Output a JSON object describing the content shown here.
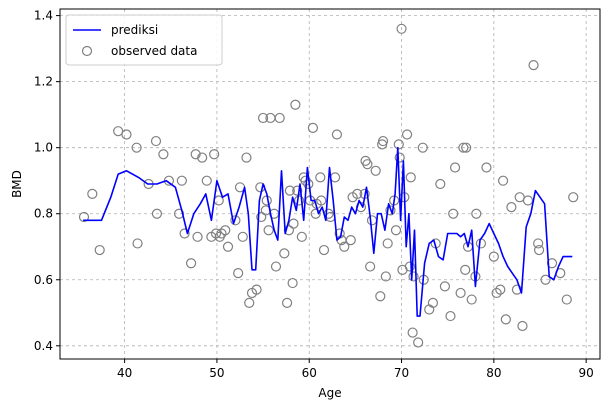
{
  "chart_data": {
    "type": "scatter",
    "title": "",
    "xlabel": "Age",
    "ylabel": "BMD",
    "xlim": [
      33,
      91.5
    ],
    "ylim": [
      0.36,
      1.42
    ],
    "xticks": [
      40,
      50,
      60,
      70,
      80,
      90
    ],
    "yticks": [
      0.4,
      0.6,
      0.8,
      1.0,
      1.2,
      1.4
    ],
    "xtick_labels": [
      "40",
      "50",
      "60",
      "70",
      "80",
      "90"
    ],
    "ytick_labels": [
      "0.4",
      "0.6",
      "0.8",
      "1.0",
      "1.2",
      "1.4"
    ],
    "grid": true,
    "legend_position": "top-left",
    "colors": {
      "line": "#0000ff",
      "points": "#808080",
      "grid": "#b0b0b0"
    },
    "series": [
      {
        "name": "prediksi",
        "kind": "line",
        "x": [
          35.5,
          36.5,
          37.5,
          38.5,
          39.3,
          40.2,
          41.5,
          42.5,
          43.5,
          44.5,
          45.5,
          46.2,
          46.8,
          47.5,
          48.2,
          48.8,
          49.4,
          50.0,
          50.6,
          51.2,
          51.8,
          52.4,
          53.0,
          53.4,
          53.8,
          54.2,
          54.6,
          55.0,
          55.4,
          55.8,
          56.2,
          56.6,
          57.0,
          57.4,
          57.8,
          58.2,
          58.6,
          59.0,
          59.4,
          59.8,
          60.2,
          60.6,
          61.0,
          61.4,
          61.8,
          62.2,
          62.6,
          63.0,
          63.4,
          63.8,
          64.2,
          64.6,
          65.0,
          65.4,
          65.8,
          66.2,
          66.6,
          67.0,
          67.4,
          67.8,
          68.2,
          68.6,
          69.0,
          69.3,
          69.6,
          69.9,
          70.2,
          70.5,
          70.8,
          71.1,
          71.4,
          71.7,
          72.0,
          72.5,
          73.0,
          73.5,
          74.0,
          74.5,
          75.0,
          75.5,
          76.0,
          76.4,
          76.8,
          77.2,
          77.6,
          78.0,
          78.5,
          79.0,
          79.5,
          80.0,
          80.5,
          81.0,
          81.5,
          82.0,
          82.5,
          83.0,
          83.5,
          84.0,
          84.5,
          85.0,
          85.5,
          86.0,
          86.5,
          87.0,
          87.5,
          88.0,
          88.5
        ],
        "y": [
          0.78,
          0.78,
          0.78,
          0.85,
          0.92,
          0.93,
          0.91,
          0.89,
          0.89,
          0.9,
          0.88,
          0.81,
          0.74,
          0.8,
          0.83,
          0.86,
          0.78,
          0.9,
          0.85,
          0.86,
          0.77,
          0.82,
          0.88,
          0.8,
          0.63,
          0.63,
          0.84,
          0.89,
          0.86,
          0.8,
          0.75,
          0.72,
          0.93,
          0.74,
          0.78,
          0.85,
          0.81,
          0.89,
          0.78,
          0.94,
          0.84,
          0.84,
          0.8,
          0.82,
          0.78,
          0.94,
          0.84,
          0.72,
          0.73,
          0.79,
          0.78,
          0.82,
          0.8,
          0.84,
          0.82,
          0.88,
          0.79,
          0.68,
          0.8,
          0.8,
          0.75,
          0.83,
          0.8,
          0.86,
          1.0,
          0.78,
          0.96,
          0.7,
          0.8,
          0.6,
          0.75,
          0.49,
          0.49,
          0.65,
          0.71,
          0.72,
          0.67,
          0.66,
          0.74,
          0.74,
          0.74,
          0.73,
          0.74,
          0.7,
          0.75,
          0.58,
          0.72,
          0.74,
          0.77,
          0.74,
          0.71,
          0.67,
          0.64,
          0.62,
          0.6,
          0.56,
          0.76,
          0.8,
          0.87,
          0.85,
          0.83,
          0.61,
          0.6,
          0.64,
          0.67,
          0.67,
          0.67
        ]
      },
      {
        "name": "observed data",
        "kind": "scatter",
        "x": [
          35.6,
          36.5,
          37.3,
          39.3,
          40.2,
          41.3,
          41.4,
          42.6,
          43.4,
          43.5,
          44.2,
          44.8,
          45.9,
          46.2,
          46.5,
          47.2,
          47.9,
          48.4,
          48.9,
          49.4,
          49.7,
          49.9,
          50.2,
          50.3,
          50.5,
          51.2,
          52.0,
          52.3,
          52.5,
          52.8,
          53.2,
          53.5,
          53.8,
          54.3,
          54.7,
          55.0,
          55.3,
          55.4,
          55.6,
          56.2,
          56.8,
          57.3,
          57.6,
          57.8,
          58.2,
          58.5,
          58.7,
          58.9,
          59.2,
          59.6,
          59.9,
          60.1,
          60.4,
          60.8,
          61.3,
          61.6,
          62.1,
          62.8,
          63.0,
          63.3,
          63.8,
          64.7,
          65.2,
          65.6,
          66.0,
          66.3,
          66.8,
          67.2,
          67.7,
          68.0,
          68.3,
          68.8,
          69.2,
          69.7,
          70.0,
          70.1,
          70.3,
          70.6,
          71.0,
          71.2,
          71.8,
          72.4,
          73.0,
          73.7,
          74.2,
          74.7,
          75.3,
          75.8,
          76.4,
          76.7,
          77.2,
          77.6,
          78.1,
          78.6,
          79.2,
          80.0,
          80.7,
          81.3,
          81.9,
          82.5,
          83.1,
          83.7,
          84.3,
          84.8,
          85.6,
          86.3,
          87.2,
          87.9,
          88.6,
          69.8,
          58.3,
          54.8,
          61.2,
          67.9,
          72.3,
          66.1,
          63.5,
          78.0,
          81.0,
          77.0,
          59.4,
          73.4,
          70.9,
          64.5,
          55.8,
          57.9,
          75.6,
          68.5,
          62.3,
          80.3,
          84.9,
          76.9,
          50.9,
          47.7,
          71.3,
          69.4,
          56.4,
          60.7,
          66.6,
          82.8
        ],
        "y": [
          0.79,
          0.86,
          0.69,
          1.05,
          1.04,
          1.0,
          0.71,
          0.89,
          1.02,
          0.8,
          0.98,
          0.9,
          0.8,
          0.9,
          0.74,
          0.65,
          0.73,
          0.97,
          0.9,
          0.73,
          0.98,
          0.74,
          0.84,
          0.73,
          0.74,
          0.7,
          0.78,
          0.62,
          0.88,
          0.73,
          0.97,
          0.53,
          0.56,
          0.57,
          0.88,
          1.09,
          0.81,
          0.84,
          0.75,
          0.8,
          1.09,
          0.68,
          0.53,
          0.75,
          0.59,
          1.13,
          0.87,
          0.84,
          0.73,
          0.9,
          0.89,
          0.84,
          1.06,
          0.83,
          0.84,
          0.69,
          0.8,
          0.91,
          1.04,
          0.74,
          0.7,
          0.85,
          0.86,
          0.82,
          0.86,
          0.95,
          0.78,
          0.93,
          0.55,
          1.02,
          0.61,
          0.81,
          0.84,
          1.01,
          1.36,
          0.63,
          0.85,
          1.04,
          0.91,
          0.44,
          0.41,
          0.6,
          0.51,
          0.71,
          0.89,
          0.58,
          0.49,
          0.94,
          0.56,
          1.0,
          0.7,
          0.54,
          0.8,
          0.71,
          0.94,
          0.67,
          0.57,
          0.48,
          0.82,
          0.57,
          0.46,
          0.84,
          1.25,
          0.71,
          0.6,
          0.65,
          0.62,
          0.54,
          0.85,
          0.97,
          0.77,
          0.79,
          0.91,
          1.01,
          1.0,
          0.96,
          0.72,
          0.61,
          0.9,
          1.0,
          0.91,
          0.53,
          0.64,
          0.72,
          1.09,
          0.87,
          0.8,
          0.71,
          0.79,
          0.56,
          0.69,
          0.63,
          0.75,
          0.98,
          0.61,
          0.75,
          0.64,
          0.8,
          0.64,
          0.85
        ]
      }
    ]
  }
}
